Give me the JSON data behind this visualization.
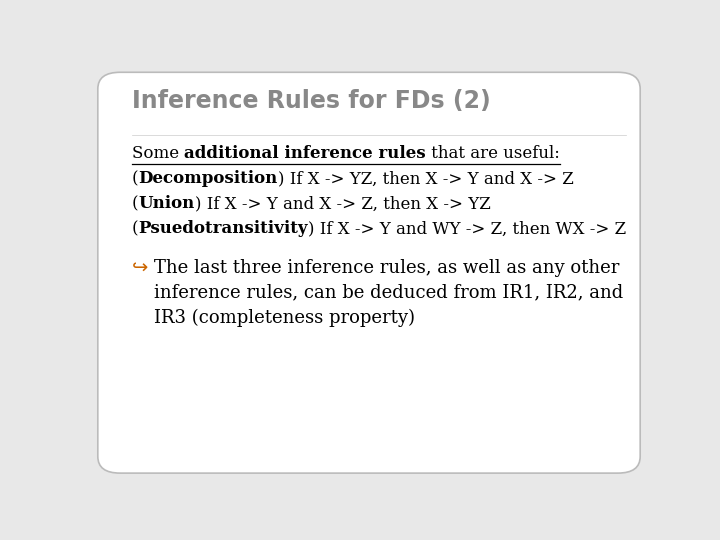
{
  "title": "Inference Rules for FDs (2)",
  "title_color": "#888888",
  "title_fontsize": 17,
  "bg_color": "#e8e8e8",
  "slide_bg": "#ffffff",
  "border_color": "#bbbbbb",
  "body_fontsize": 12,
  "bullet_fontsize": 13,
  "bullet_color": "#cc6600",
  "text_color": "#000000",
  "line1_parts": [
    {
      "text": "Some ",
      "bold": false,
      "underline": true
    },
    {
      "text": "additional inference rules",
      "bold": true,
      "underline": true
    },
    {
      "text": " that are useful:",
      "bold": false,
      "underline": true
    }
  ],
  "line2_parts": [
    {
      "text": "(",
      "bold": false
    },
    {
      "text": "Decomposition",
      "bold": true
    },
    {
      "text": ") If X -> YZ, then X -> Y and X -> Z",
      "bold": false
    }
  ],
  "line3_parts": [
    {
      "text": "(",
      "bold": false
    },
    {
      "text": "Union",
      "bold": true
    },
    {
      "text": ") If X -> Y and X -> Z, then X -> YZ",
      "bold": false
    }
  ],
  "line4_parts": [
    {
      "text": "(",
      "bold": false
    },
    {
      "text": "Psuedotransitivity",
      "bold": true
    },
    {
      "text": ") If X -> Y and WY -> Z, then WX -> Z",
      "bold": false
    }
  ],
  "bullet_line1": "The last three inference rules, as well as any other",
  "bullet_line2": "inference rules, can be deduced from IR1, IR2, and",
  "bullet_line3": "IR3 (completeness property)"
}
